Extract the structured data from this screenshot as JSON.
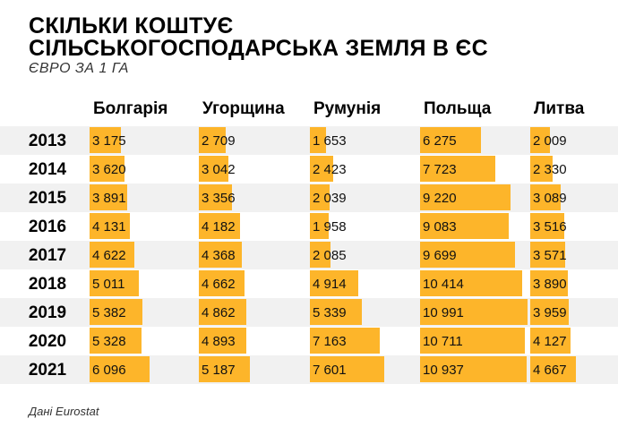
{
  "chart_data": {
    "type": "table",
    "title_line1": "СКІЛЬКИ КОШТУЄ",
    "title_line2": "СІЛЬСЬКОГОСПОДАРСЬКА ЗЕМЛЯ В ЄС",
    "subtitle": "ЄВРО ЗА 1 ГА",
    "source": "Дані Eurostat",
    "bar_color": "#fdb52a",
    "bar_max": 11000,
    "years": [
      "2013",
      "2014",
      "2015",
      "2016",
      "2017",
      "2018",
      "2019",
      "2020",
      "2021"
    ],
    "series": [
      {
        "name": "Болгарія",
        "values": [
          3175,
          3620,
          3891,
          4131,
          4622,
          5011,
          5382,
          5328,
          6096
        ],
        "labels": [
          "3 175",
          "3 620",
          "3 891",
          "4 131",
          "4 622",
          "5 011",
          "5 382",
          "5 328",
          "6 096"
        ]
      },
      {
        "name": "Угорщина",
        "values": [
          2709,
          3042,
          3356,
          4182,
          4368,
          4662,
          4862,
          4893,
          5187
        ],
        "labels": [
          "2 709",
          "3 042",
          "3 356",
          "4 182",
          "4 368",
          "4 662",
          "4 862",
          "4 893",
          "5 187"
        ]
      },
      {
        "name": "Румунія",
        "values": [
          1653,
          2423,
          2039,
          1958,
          2085,
          4914,
          5339,
          7163,
          7601
        ],
        "labels": [
          "1 653",
          "2 423",
          "2 039",
          "1 958",
          "2 085",
          "4 914",
          "5 339",
          "7 163",
          "7 601"
        ]
      },
      {
        "name": "Польща",
        "values": [
          6275,
          7723,
          9220,
          9083,
          9699,
          10414,
          10991,
          10711,
          10937
        ],
        "labels": [
          "6 275",
          "7 723",
          "9 220",
          "9 083",
          "9 699",
          "10 414",
          "10 991",
          "10 711",
          "10 937"
        ]
      },
      {
        "name": "Литва",
        "values": [
          2009,
          2330,
          3089,
          3516,
          3571,
          3890,
          3959,
          4127,
          4667
        ],
        "labels": [
          "2 009",
          "2 330",
          "3 089",
          "3 516",
          "3 571",
          "3 890",
          "3 959",
          "4 127",
          "4 667"
        ]
      }
    ]
  }
}
